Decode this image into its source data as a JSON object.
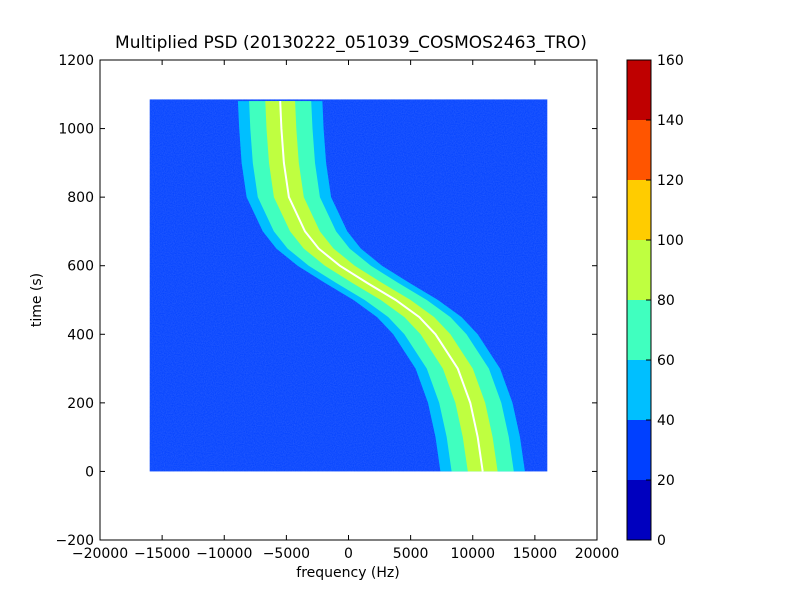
{
  "chart_data": {
    "type": "heatmap",
    "title": "Multiplied PSD (20130222_051039_COSMOS2463_TRO)",
    "xlabel": "frequency (Hz)",
    "ylabel": "time (s)",
    "xlim": [
      -20000,
      20000
    ],
    "ylim": [
      -200,
      1200
    ],
    "xticks": [
      -20000,
      -15000,
      -10000,
      -5000,
      0,
      5000,
      10000,
      15000,
      20000
    ],
    "xtick_labels": [
      "−20000",
      "−15000",
      "−10000",
      "−5000",
      "0",
      "5000",
      "10000",
      "15000",
      "20000"
    ],
    "yticks": [
      -200,
      0,
      200,
      400,
      600,
      800,
      1000,
      1200
    ],
    "ytick_labels": [
      "−200",
      "0",
      "200",
      "400",
      "600",
      "800",
      "1000",
      "1200"
    ],
    "grid": false,
    "data_extent": {
      "x": [
        -16000,
        16000
      ],
      "y": [
        0,
        1085
      ]
    },
    "background_level": 25,
    "doppler_trace": {
      "description_values": "center frequency (Hz) vs time (s) of the satellite signal, sampled",
      "points": [
        {
          "t": 0,
          "f": 10800
        },
        {
          "t": 100,
          "f": 10400
        },
        {
          "t": 200,
          "f": 9800
        },
        {
          "t": 300,
          "f": 8800
        },
        {
          "t": 400,
          "f": 7000
        },
        {
          "t": 450,
          "f": 5700
        },
        {
          "t": 500,
          "f": 3800
        },
        {
          "t": 550,
          "f": 1500
        },
        {
          "t": 600,
          "f": -700
        },
        {
          "t": 650,
          "f": -2400
        },
        {
          "t": 700,
          "f": -3500
        },
        {
          "t": 800,
          "f": -4800
        },
        {
          "t": 900,
          "f": -5200
        },
        {
          "t": 1000,
          "f": -5400
        },
        {
          "t": 1080,
          "f": -5500
        }
      ],
      "band_levels": [
        {
          "halfwidth_hz": 3400,
          "level": 50
        },
        {
          "halfwidth_hz": 2500,
          "level": 70
        },
        {
          "halfwidth_hz": 1200,
          "level": 90
        },
        {
          "halfwidth_hz": 0,
          "level": 160
        }
      ]
    },
    "colorbar": {
      "range": [
        0,
        160
      ],
      "ticks": [
        0,
        20,
        40,
        60,
        80,
        100,
        120,
        140,
        160
      ],
      "tick_labels": [
        "0",
        "20",
        "40",
        "60",
        "80",
        "100",
        "120",
        "140",
        "160"
      ],
      "colors": [
        "#0000bf",
        "#0040ff",
        "#00bfff",
        "#40ffbf",
        "#bfff40",
        "#ffcc00",
        "#ff5500",
        "#bf0000"
      ]
    }
  }
}
